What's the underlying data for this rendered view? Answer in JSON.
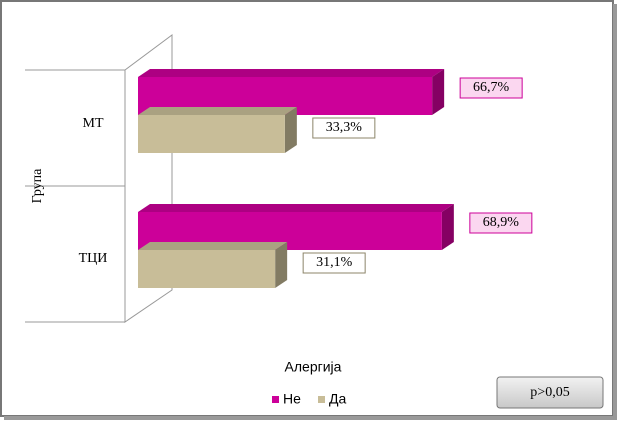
{
  "chart_data": {
    "type": "bar",
    "axis_label": "Група",
    "legend_title": "Алергија",
    "annotation": "p>0,05",
    "categories": [
      "МТ",
      "ТЦИ"
    ],
    "series": [
      {
        "name": "Не",
        "color": "#cc0099",
        "values": [
          66.7,
          68.9
        ],
        "value_labels": [
          "66,7%",
          "68,9%"
        ]
      },
      {
        "name": "Да",
        "color": "#c8bd98",
        "values": [
          33.3,
          31.1
        ],
        "value_labels": [
          "33,3%",
          "31,1%"
        ]
      }
    ]
  }
}
